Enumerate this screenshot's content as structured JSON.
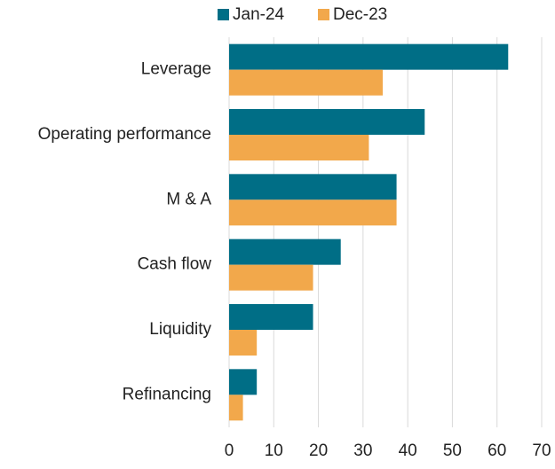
{
  "chart_data": {
    "type": "hbar",
    "categories": [
      "Leverage",
      "Operating performance",
      "M & A",
      "Cash flow",
      "Liquidity",
      "Refinancing"
    ],
    "series": [
      {
        "name": "Jan-24",
        "color": "#006e86",
        "values": [
          62.5,
          43.8,
          37.5,
          25,
          18.8,
          6.2
        ]
      },
      {
        "name": "Dec-23",
        "color": "#f2a84b",
        "values": [
          34.4,
          31.3,
          37.5,
          18.8,
          6.2,
          3.1
        ]
      }
    ],
    "xlim": [
      0,
      70
    ],
    "xticks": [
      0,
      10,
      20,
      30,
      40,
      50,
      60,
      70
    ],
    "grid": true,
    "legend": "top"
  }
}
